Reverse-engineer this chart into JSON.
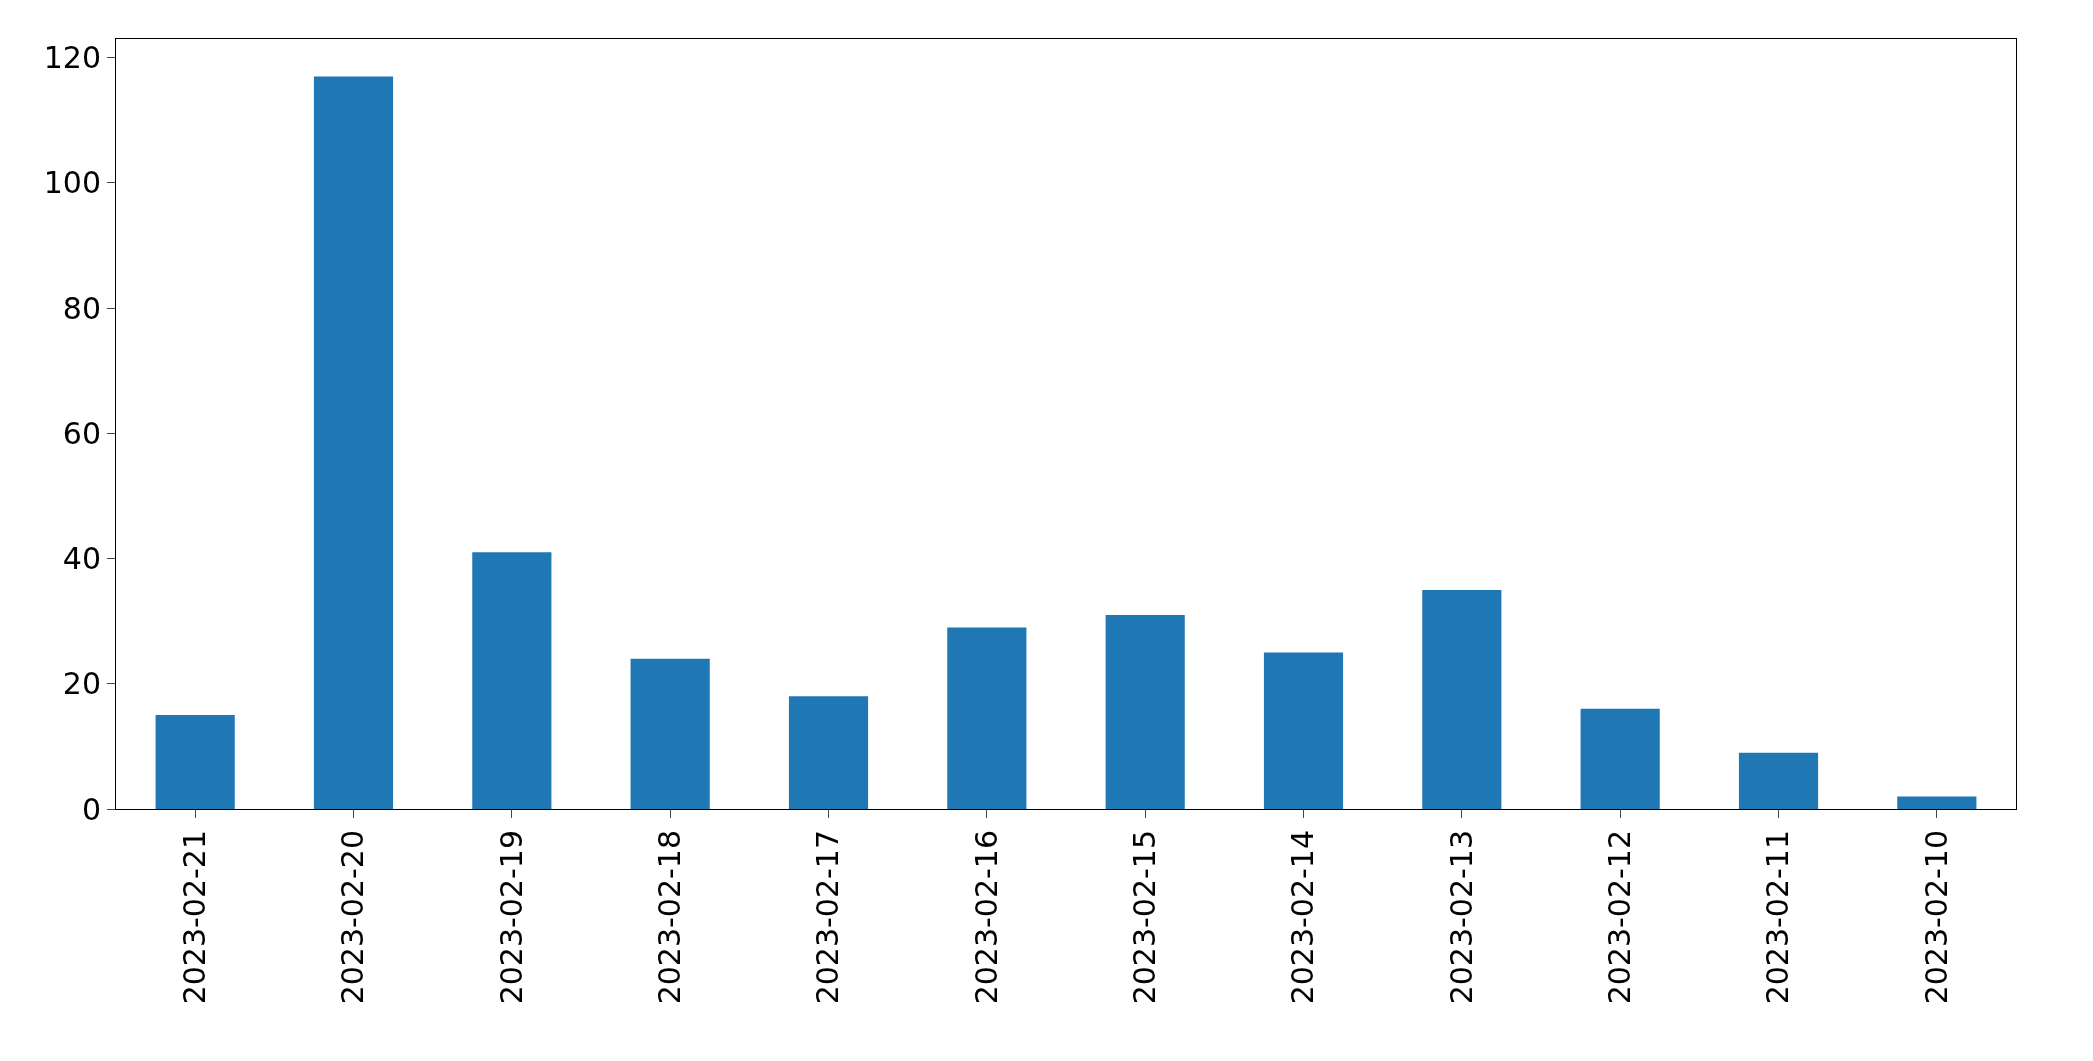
{
  "chart_data": {
    "type": "bar",
    "categories": [
      "2023-02-21",
      "2023-02-20",
      "2023-02-19",
      "2023-02-18",
      "2023-02-17",
      "2023-02-16",
      "2023-02-15",
      "2023-02-14",
      "2023-02-13",
      "2023-02-12",
      "2023-02-11",
      "2023-02-10"
    ],
    "values": [
      15,
      117,
      41,
      24,
      18,
      29,
      31,
      25,
      35,
      16,
      9,
      2
    ],
    "color": "#1f77b4",
    "ylim": [
      0,
      123
    ],
    "yticks": [
      0,
      20,
      40,
      60,
      80,
      100,
      120
    ]
  }
}
